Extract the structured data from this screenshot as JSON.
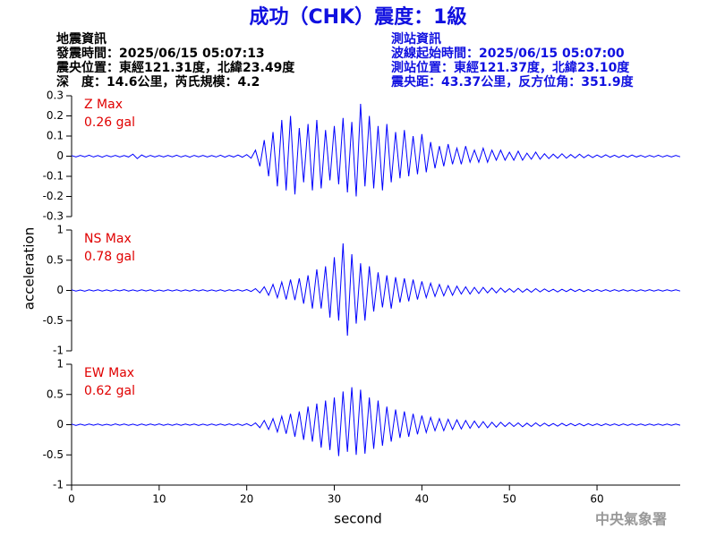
{
  "title": "成功（CHK）震度：1級",
  "left_info": [
    "地震資訊",
    "發震時間：2025/06/15 05:07:13",
    "震央位置：東經121.31度，北緯23.49度",
    "深　度：14.6公里，芮氏規模：4.2"
  ],
  "right_info": [
    "測站資訊",
    "波線起始時間：2025/06/15 05:07:00",
    "測站位置：東經121.37度，北緯23.10度",
    "震央距：43.37公里，反方位角：351.9度"
  ],
  "ylabel": "acceleration",
  "xlabel": "second",
  "footer": "中央氣象署",
  "chart_data": [
    {
      "type": "line",
      "annotation": [
        "Z Max",
        "0.26 gal"
      ],
      "annotation_color": "#e00000",
      "xlim": [
        0,
        69.5
      ],
      "ylim": [
        -0.3,
        0.3
      ],
      "yticks": [
        -0.3,
        -0.2,
        -0.1,
        0,
        0.1,
        0.2,
        0.3
      ],
      "color": "#0000ff",
      "x": [
        0,
        0.5,
        1,
        1.5,
        2,
        2.5,
        3,
        3.5,
        4,
        4.5,
        5,
        5.5,
        6,
        6.5,
        7,
        7.5,
        8,
        8.5,
        9,
        9.5,
        10,
        10.5,
        11,
        11.5,
        12,
        12.5,
        13,
        13.5,
        14,
        14.5,
        15,
        15.5,
        16,
        16.5,
        17,
        17.5,
        18,
        18.5,
        19,
        19.5,
        20,
        20.5,
        21,
        21.5,
        22,
        22.5,
        23,
        23.5,
        24,
        24.5,
        25,
        25.5,
        26,
        26.5,
        27,
        27.5,
        28,
        28.5,
        29,
        29.5,
        30,
        30.5,
        31,
        31.5,
        32,
        32.5,
        33,
        33.5,
        34,
        34.5,
        35,
        35.5,
        36,
        36.5,
        37,
        37.5,
        38,
        38.5,
        39,
        39.5,
        40,
        40.5,
        41,
        41.5,
        42,
        42.5,
        43,
        43.5,
        44,
        44.5,
        45,
        45.5,
        46,
        46.5,
        47,
        47.5,
        48,
        48.5,
        49,
        49.5,
        50,
        50.5,
        51,
        51.5,
        52,
        52.5,
        53,
        53.5,
        54,
        54.5,
        55,
        55.5,
        56,
        56.5,
        57,
        57.5,
        58,
        58.5,
        59,
        59.5,
        60,
        60.5,
        61,
        61.5,
        62,
        62.5,
        63,
        63.5,
        64,
        64.5,
        65,
        65.5,
        66,
        66.5,
        67,
        67.5,
        68,
        68.5,
        69,
        69.5
      ],
      "values": [
        0.003,
        -0.004,
        0.004,
        -0.003,
        0.005,
        -0.004,
        0.003,
        -0.005,
        0.004,
        -0.003,
        0.004,
        -0.004,
        0.003,
        -0.004,
        0.01,
        -0.012,
        0.006,
        -0.005,
        0.004,
        -0.004,
        0.003,
        -0.004,
        0.004,
        -0.003,
        0.005,
        -0.004,
        0.003,
        -0.005,
        0.004,
        -0.003,
        0.004,
        -0.004,
        0.003,
        -0.004,
        0.005,
        -0.005,
        0.004,
        -0.004,
        0.006,
        -0.005,
        0.008,
        -0.01,
        0.03,
        -0.05,
        0.08,
        -0.1,
        0.12,
        -0.15,
        0.18,
        -0.17,
        0.2,
        -0.19,
        0.14,
        -0.13,
        0.16,
        -0.17,
        0.18,
        -0.16,
        0.13,
        -0.12,
        0.15,
        -0.14,
        0.19,
        -0.18,
        0.17,
        -0.2,
        0.26,
        -0.15,
        0.2,
        -0.16,
        0.15,
        -0.17,
        0.16,
        -0.13,
        0.12,
        -0.11,
        0.13,
        -0.1,
        0.1,
        -0.09,
        0.11,
        -0.08,
        0.07,
        -0.06,
        0.05,
        -0.05,
        0.06,
        -0.04,
        0.04,
        -0.04,
        0.05,
        -0.03,
        0.03,
        -0.03,
        0.04,
        -0.03,
        0.03,
        -0.02,
        0.03,
        -0.02,
        0.02,
        -0.02,
        0.025,
        -0.02,
        0.015,
        -0.015,
        0.02,
        -0.015,
        0.012,
        -0.012,
        0.01,
        -0.01,
        0.012,
        -0.01,
        0.008,
        -0.009,
        0.01,
        -0.008,
        0.007,
        -0.007,
        0.006,
        -0.006,
        0.007,
        -0.005,
        0.005,
        -0.006,
        0.005,
        -0.005,
        0.006,
        -0.004,
        0.004,
        -0.005,
        0.004,
        -0.004,
        0.005,
        -0.004,
        0.004,
        -0.004,
        0.004,
        -0.003
      ]
    },
    {
      "type": "line",
      "annotation": [
        "NS Max",
        "0.78 gal"
      ],
      "annotation_color": "#e00000",
      "xlim": [
        0,
        69.5
      ],
      "ylim": [
        -1,
        1
      ],
      "yticks": [
        -1,
        -0.5,
        0,
        0.5,
        1
      ],
      "color": "#0000ff",
      "x": [
        0,
        0.5,
        1,
        1.5,
        2,
        2.5,
        3,
        3.5,
        4,
        4.5,
        5,
        5.5,
        6,
        6.5,
        7,
        7.5,
        8,
        8.5,
        9,
        9.5,
        10,
        10.5,
        11,
        11.5,
        12,
        12.5,
        13,
        13.5,
        14,
        14.5,
        15,
        15.5,
        16,
        16.5,
        17,
        17.5,
        18,
        18.5,
        19,
        19.5,
        20,
        20.5,
        21,
        21.5,
        22,
        22.5,
        23,
        23.5,
        24,
        24.5,
        25,
        25.5,
        26,
        26.5,
        27,
        27.5,
        28,
        28.5,
        29,
        29.5,
        30,
        30.5,
        31,
        31.5,
        32,
        32.5,
        33,
        33.5,
        34,
        34.5,
        35,
        35.5,
        36,
        36.5,
        37,
        37.5,
        38,
        38.5,
        39,
        39.5,
        40,
        40.5,
        41,
        41.5,
        42,
        42.5,
        43,
        43.5,
        44,
        44.5,
        45,
        45.5,
        46,
        46.5,
        47,
        47.5,
        48,
        48.5,
        49,
        49.5,
        50,
        50.5,
        51,
        51.5,
        52,
        52.5,
        53,
        53.5,
        54,
        54.5,
        55,
        55.5,
        56,
        56.5,
        57,
        57.5,
        58,
        58.5,
        59,
        59.5,
        60,
        60.5,
        61,
        61.5,
        62,
        62.5,
        63,
        63.5,
        64,
        64.5,
        65,
        65.5,
        66,
        66.5,
        67,
        67.5,
        68,
        68.5,
        69,
        69.5
      ],
      "values": [
        0.01,
        -0.01,
        0.008,
        -0.012,
        0.01,
        -0.009,
        0.011,
        -0.01,
        0.009,
        -0.011,
        0.01,
        -0.008,
        0.012,
        -0.01,
        0.009,
        -0.01,
        0.011,
        -0.009,
        0.01,
        -0.012,
        0.008,
        -0.01,
        0.011,
        -0.009,
        0.01,
        -0.011,
        0.009,
        -0.01,
        0.012,
        -0.009,
        0.01,
        -0.011,
        0.009,
        -0.01,
        0.011,
        -0.012,
        0.01,
        -0.009,
        0.012,
        -0.011,
        0.015,
        -0.018,
        0.03,
        -0.04,
        0.06,
        -0.08,
        0.1,
        -0.12,
        0.14,
        -0.15,
        0.18,
        -0.16,
        0.2,
        -0.22,
        0.25,
        -0.3,
        0.35,
        -0.3,
        0.4,
        -0.45,
        0.55,
        -0.5,
        0.78,
        -0.75,
        0.6,
        -0.55,
        0.45,
        -0.5,
        0.4,
        -0.35,
        0.3,
        -0.28,
        0.25,
        -0.3,
        0.22,
        -0.2,
        0.2,
        -0.18,
        0.18,
        -0.15,
        0.15,
        -0.12,
        0.12,
        -0.1,
        0.1,
        -0.09,
        0.08,
        -0.08,
        0.07,
        -0.06,
        0.06,
        -0.06,
        0.05,
        -0.05,
        0.05,
        -0.04,
        0.04,
        -0.04,
        0.04,
        -0.03,
        0.03,
        -0.03,
        0.035,
        -0.03,
        0.025,
        -0.03,
        0.03,
        -0.025,
        0.025,
        -0.02,
        0.02,
        -0.025,
        0.02,
        -0.02,
        0.022,
        -0.018,
        0.018,
        -0.02,
        0.015,
        -0.016,
        0.015,
        -0.014,
        0.012,
        -0.015,
        0.013,
        -0.012,
        0.012,
        -0.011,
        0.011,
        -0.012,
        0.01,
        -0.011,
        0.012,
        -0.01,
        0.01,
        -0.011,
        0.01,
        -0.009,
        0.01,
        -0.01
      ]
    },
    {
      "type": "line",
      "annotation": [
        "EW Max",
        "0.62 gal"
      ],
      "annotation_color": "#e00000",
      "xlim": [
        0,
        69.5
      ],
      "xticks": [
        0,
        10,
        20,
        30,
        40,
        50,
        60
      ],
      "ylim": [
        -1,
        1
      ],
      "yticks": [
        -1,
        -0.5,
        0,
        0.5,
        1
      ],
      "color": "#0000ff",
      "x": [
        0,
        0.5,
        1,
        1.5,
        2,
        2.5,
        3,
        3.5,
        4,
        4.5,
        5,
        5.5,
        6,
        6.5,
        7,
        7.5,
        8,
        8.5,
        9,
        9.5,
        10,
        10.5,
        11,
        11.5,
        12,
        12.5,
        13,
        13.5,
        14,
        14.5,
        15,
        15.5,
        16,
        16.5,
        17,
        17.5,
        18,
        18.5,
        19,
        19.5,
        20,
        20.5,
        21,
        21.5,
        22,
        22.5,
        23,
        23.5,
        24,
        24.5,
        25,
        25.5,
        26,
        26.5,
        27,
        27.5,
        28,
        28.5,
        29,
        29.5,
        30,
        30.5,
        31,
        31.5,
        32,
        32.5,
        33,
        33.5,
        34,
        34.5,
        35,
        35.5,
        36,
        36.5,
        37,
        37.5,
        38,
        38.5,
        39,
        39.5,
        40,
        40.5,
        41,
        41.5,
        42,
        42.5,
        43,
        43.5,
        44,
        44.5,
        45,
        45.5,
        46,
        46.5,
        47,
        47.5,
        48,
        48.5,
        49,
        49.5,
        50,
        50.5,
        51,
        51.5,
        52,
        52.5,
        53,
        53.5,
        54,
        54.5,
        55,
        55.5,
        56,
        56.5,
        57,
        57.5,
        58,
        58.5,
        59,
        59.5,
        60,
        60.5,
        61,
        61.5,
        62,
        62.5,
        63,
        63.5,
        64,
        64.5,
        65,
        65.5,
        66,
        66.5,
        67,
        67.5,
        68,
        68.5,
        69,
        69.5
      ],
      "values": [
        0.01,
        -0.012,
        0.009,
        -0.01,
        0.011,
        -0.009,
        0.01,
        -0.011,
        0.008,
        -0.01,
        0.012,
        -0.009,
        0.01,
        -0.01,
        0.009,
        -0.012,
        0.011,
        -0.01,
        0.01,
        -0.009,
        0.012,
        -0.01,
        0.009,
        -0.011,
        0.01,
        -0.01,
        0.011,
        -0.009,
        0.01,
        -0.012,
        0.009,
        -0.01,
        0.011,
        -0.01,
        0.01,
        -0.011,
        0.012,
        -0.01,
        0.013,
        -0.012,
        0.016,
        -0.02,
        0.03,
        -0.05,
        0.07,
        -0.08,
        0.1,
        -0.12,
        0.14,
        -0.15,
        0.18,
        -0.2,
        0.22,
        -0.25,
        0.3,
        -0.28,
        0.35,
        -0.38,
        0.4,
        -0.42,
        0.45,
        -0.52,
        0.55,
        -0.45,
        0.62,
        -0.5,
        0.58,
        -0.48,
        0.45,
        -0.4,
        0.4,
        -0.35,
        0.3,
        -0.28,
        0.25,
        -0.22,
        0.22,
        -0.2,
        0.18,
        -0.16,
        0.15,
        -0.13,
        0.12,
        -0.1,
        0.1,
        -0.1,
        0.09,
        -0.08,
        0.08,
        -0.07,
        0.07,
        -0.06,
        0.06,
        -0.05,
        0.05,
        -0.05,
        0.04,
        -0.04,
        0.04,
        -0.03,
        0.035,
        -0.03,
        0.03,
        -0.035,
        0.025,
        -0.03,
        0.03,
        -0.025,
        0.025,
        -0.022,
        0.02,
        -0.025,
        0.022,
        -0.02,
        0.02,
        -0.018,
        0.018,
        -0.02,
        0.016,
        -0.015,
        0.015,
        -0.016,
        0.014,
        -0.013,
        0.013,
        -0.014,
        0.012,
        -0.012,
        0.012,
        -0.011,
        0.011,
        -0.012,
        0.01,
        -0.011,
        0.011,
        -0.01,
        0.01,
        -0.01,
        0.01,
        -0.009
      ]
    }
  ]
}
